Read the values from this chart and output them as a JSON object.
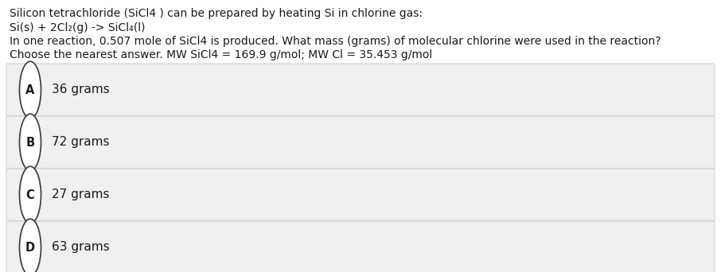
{
  "title_lines": [
    "Silicon tetrachloride (SiCl4 ) can be prepared by heating Si in chlorine gas:",
    "Si(s) + 2Cl₂(g) -> SiCl₄(l)",
    "In one reaction, 0.507 mole of SiCl4 is produced. What mass (grams) of molecular chlorine were used in the reaction?",
    "Choose the nearest answer. MW SiCl4 = 169.9 g/mol; MW Cl = 35.453 g/mol"
  ],
  "options": [
    {
      "label": "A",
      "text": "36 grams"
    },
    {
      "label": "B",
      "text": "72 grams"
    },
    {
      "label": "C",
      "text": "27 grams"
    },
    {
      "label": "D",
      "text": "63 grams"
    }
  ],
  "bg_color": "#ffffff",
  "option_bg_color": "#f0f0f0",
  "option_border_color": "#cccccc",
  "circle_color": "#ffffff",
  "circle_edge_color": "#444444",
  "text_color": "#1a1a1a",
  "font_size_title": 10.0,
  "font_size_option": 11.0,
  "font_size_label": 10.5,
  "fig_width": 9.06,
  "fig_height": 3.42,
  "dpi": 100
}
